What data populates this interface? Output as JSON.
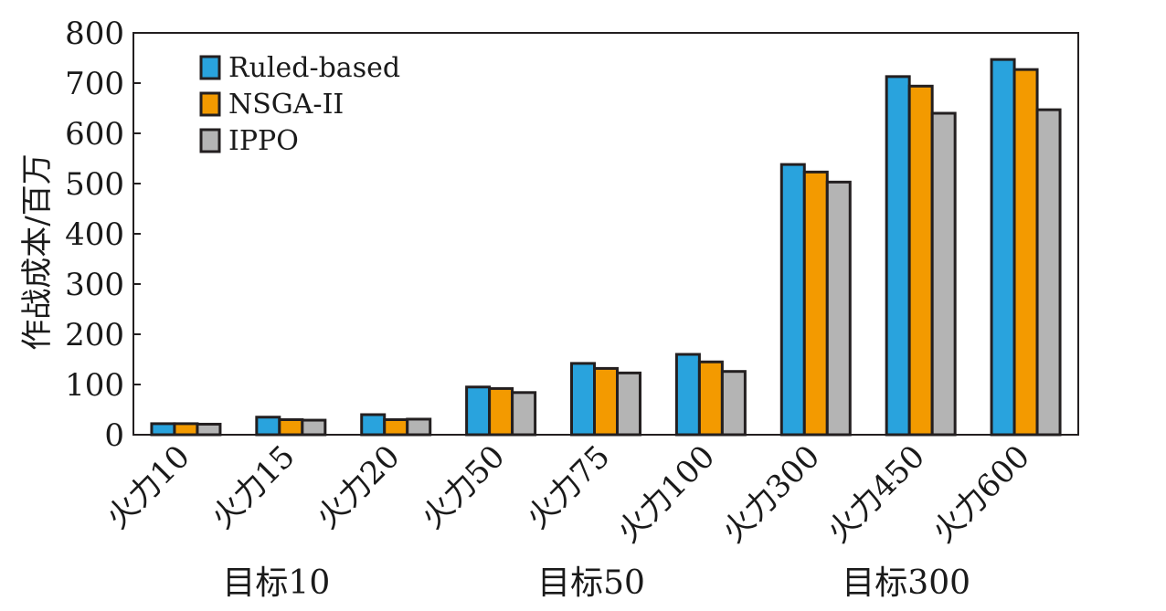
{
  "chart_data": {
    "type": "bar",
    "ylabel": "作战成本/百万",
    "ylim": [
      0,
      800
    ],
    "yticks": [
      "0",
      "100",
      "200",
      "300",
      "400",
      "500",
      "600",
      "700",
      "800"
    ],
    "categories": [
      "火力10",
      "火力15",
      "火力20",
      "火力50",
      "火力75",
      "火力100",
      "火力300",
      "火力450",
      "火力600"
    ],
    "groups": [
      {
        "label": "目标10",
        "categories": [
          "火力10",
          "火力15",
          "火力20"
        ]
      },
      {
        "label": "目标50",
        "categories": [
          "火力50",
          "火力75",
          "火力100"
        ]
      },
      {
        "label": "目标300",
        "categories": [
          "火力300",
          "火力450",
          "火力600"
        ]
      }
    ],
    "series": [
      {
        "name": "Ruled-based",
        "color": "#29a3dd",
        "values": [
          22,
          35,
          40,
          95,
          142,
          160,
          538,
          713,
          747
        ]
      },
      {
        "name": "NSGA-II",
        "color": "#f39a00",
        "values": [
          22,
          30,
          30,
          92,
          132,
          145,
          523,
          694,
          727
        ]
      },
      {
        "name": "IPPO",
        "color": "#b4b4b4",
        "values": [
          21,
          29,
          31,
          84,
          123,
          126,
          503,
          640,
          647
        ]
      }
    ],
    "legend_position": "top-left",
    "grid": false
  }
}
